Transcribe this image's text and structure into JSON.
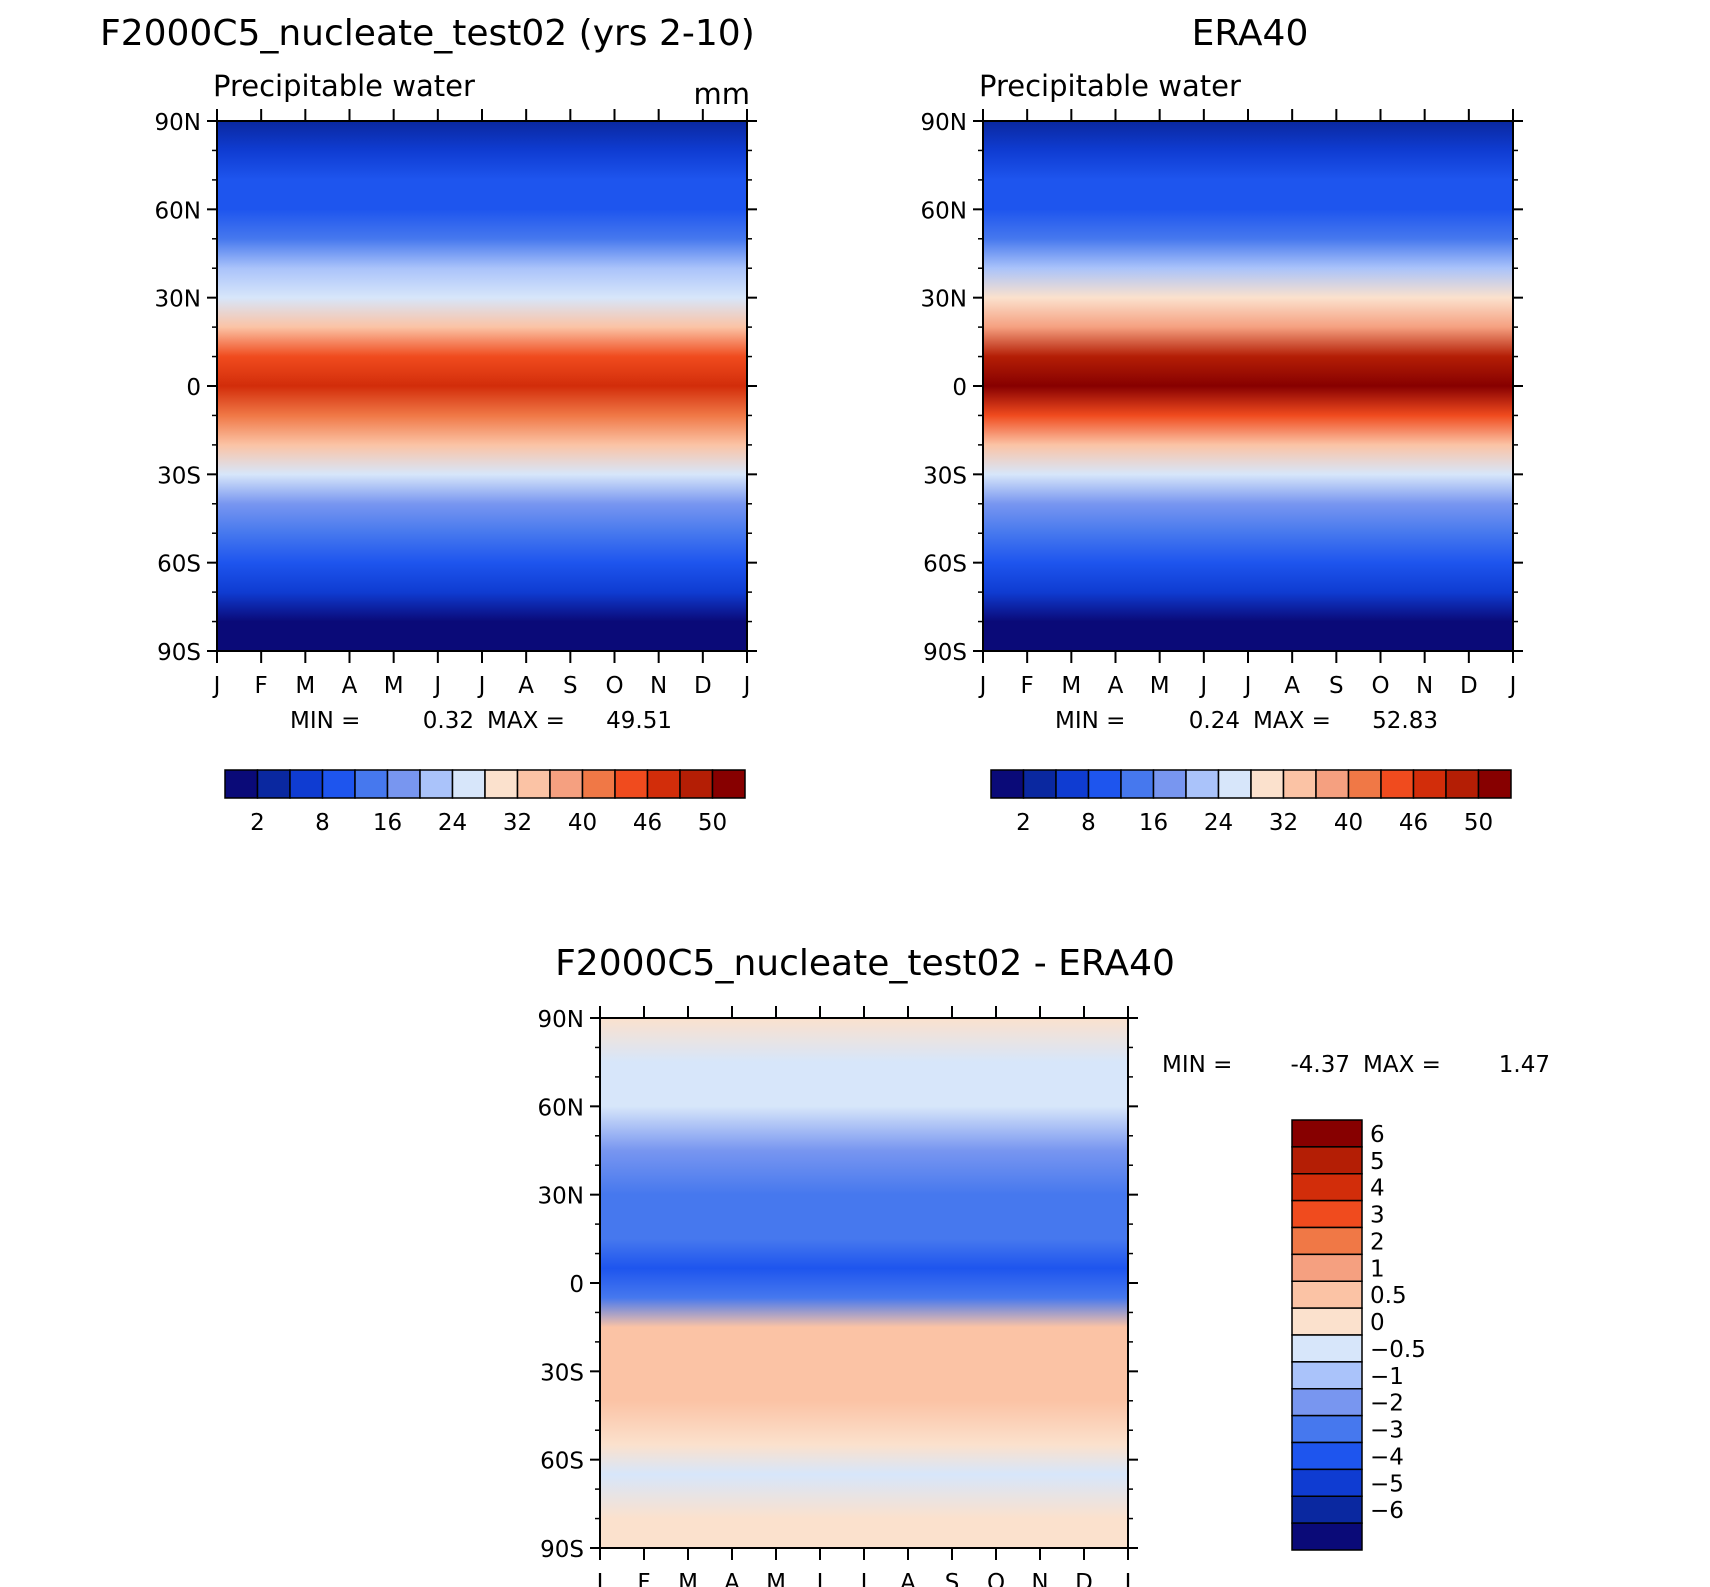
{
  "chart_data": [
    {
      "type": "heatmap",
      "id": "model",
      "title": "F2000C5_nucleate_test02 (yrs 2-10)",
      "subtitle": "Precipitable water",
      "units": "mm",
      "x_ticks": [
        "J",
        "F",
        "M",
        "A",
        "M",
        "J",
        "J",
        "A",
        "S",
        "O",
        "N",
        "D",
        "J"
      ],
      "y_ticks": [
        "90N",
        "60N",
        "30N",
        "0",
        "30S",
        "60S",
        "90S"
      ],
      "min_label": "MIN =",
      "min_value": "0.32",
      "max_label": "MAX =",
      "max_value": "49.51",
      "levels": [
        "2",
        "8",
        "16",
        "24",
        "32",
        "40",
        "46",
        "50"
      ],
      "bands": [
        {
          "lat": 90,
          "value": 2
        },
        {
          "lat": 80,
          "value": 4
        },
        {
          "lat": 70,
          "value": 6
        },
        {
          "lat": 60,
          "value": 8
        },
        {
          "lat": 50,
          "value": 12
        },
        {
          "lat": 40,
          "value": 18
        },
        {
          "lat": 30,
          "value": 24
        },
        {
          "lat": 20,
          "value": 32
        },
        {
          "lat": 10,
          "value": 44
        },
        {
          "lat": 0,
          "value": 46
        },
        {
          "lat": -10,
          "value": 40
        },
        {
          "lat": -20,
          "value": 32
        },
        {
          "lat": -30,
          "value": 24
        },
        {
          "lat": -40,
          "value": 16
        },
        {
          "lat": -50,
          "value": 10
        },
        {
          "lat": -60,
          "value": 6
        },
        {
          "lat": -70,
          "value": 3
        },
        {
          "lat": -80,
          "value": 1
        }
      ]
    },
    {
      "type": "heatmap",
      "id": "obs",
      "title": "ERA40",
      "subtitle": "Precipitable water",
      "x_ticks": [
        "J",
        "F",
        "M",
        "A",
        "M",
        "J",
        "J",
        "A",
        "S",
        "O",
        "N",
        "D",
        "J"
      ],
      "y_ticks": [
        "90N",
        "60N",
        "30N",
        "0",
        "30S",
        "60S",
        "90S"
      ],
      "min_label": "MIN =",
      "min_value": "0.24",
      "max_label": "MAX =",
      "max_value": "52.83",
      "levels": [
        "2",
        "8",
        "16",
        "24",
        "32",
        "40",
        "46",
        "50"
      ],
      "bands": [
        {
          "lat": 90,
          "value": 2
        },
        {
          "lat": 80,
          "value": 4
        },
        {
          "lat": 70,
          "value": 6
        },
        {
          "lat": 60,
          "value": 8
        },
        {
          "lat": 50,
          "value": 12
        },
        {
          "lat": 40,
          "value": 18
        },
        {
          "lat": 30,
          "value": 26
        },
        {
          "lat": 20,
          "value": 34
        },
        {
          "lat": 10,
          "value": 48
        },
        {
          "lat": 0,
          "value": 50
        },
        {
          "lat": -10,
          "value": 42
        },
        {
          "lat": -20,
          "value": 32
        },
        {
          "lat": -30,
          "value": 24
        },
        {
          "lat": -40,
          "value": 16
        },
        {
          "lat": -50,
          "value": 10
        },
        {
          "lat": -60,
          "value": 6
        },
        {
          "lat": -70,
          "value": 3
        },
        {
          "lat": -80,
          "value": 1
        }
      ]
    },
    {
      "type": "heatmap",
      "id": "diff",
      "title": "F2000C5_nucleate_test02 - ERA40",
      "x_ticks": [
        "J",
        "F",
        "M",
        "A",
        "M",
        "J",
        "J",
        "A",
        "S",
        "O",
        "N",
        "D",
        "J"
      ],
      "y_ticks": [
        "90N",
        "60N",
        "30N",
        "0",
        "30S",
        "60S",
        "90S"
      ],
      "min_label": "MIN =",
      "min_value": "-4.37",
      "max_label": "MAX =",
      "max_value": "1.47",
      "levels": [
        "6",
        "5",
        "4",
        "3",
        "2",
        "1",
        "0.5",
        "0",
        "-0.5",
        "-1",
        "-2",
        "-3",
        "-4",
        "-5",
        "-6"
      ],
      "bands": [
        {
          "lat": 90,
          "value": 0.2
        },
        {
          "lat": 75,
          "value": -0.3
        },
        {
          "lat": 60,
          "value": -0.3
        },
        {
          "lat": 45,
          "value": -1.5
        },
        {
          "lat": 30,
          "value": -2.5
        },
        {
          "lat": 15,
          "value": -2.0
        },
        {
          "lat": 5,
          "value": -3.0
        },
        {
          "lat": -5,
          "value": -2.0
        },
        {
          "lat": -15,
          "value": 0.7
        },
        {
          "lat": -25,
          "value": 1.0
        },
        {
          "lat": -40,
          "value": 0.6
        },
        {
          "lat": -55,
          "value": 0.3
        },
        {
          "lat": -65,
          "value": -0.3
        },
        {
          "lat": -80,
          "value": 0.2
        }
      ]
    }
  ],
  "palette": {
    "main": [
      "#0a0a78",
      "#0a28a0",
      "#0f3cd2",
      "#1e55ee",
      "#4678ee",
      "#7896f0",
      "#aac3fa",
      "#d7e6fa",
      "#fbe1cd",
      "#fbc3a5",
      "#f5a080",
      "#f07846",
      "#f04b1e",
      "#d22d0a",
      "#b41e05",
      "#870000"
    ],
    "diff": [
      "#870000",
      "#b41e05",
      "#d22d0a",
      "#f04b1e",
      "#f07846",
      "#f5a080",
      "#fbc3a5",
      "#fbe1cd",
      "#d7e6fa",
      "#aac3fa",
      "#7896f0",
      "#4678ee",
      "#1e55ee",
      "#0f3cd2",
      "#0a28a0",
      "#0a0a78"
    ]
  }
}
